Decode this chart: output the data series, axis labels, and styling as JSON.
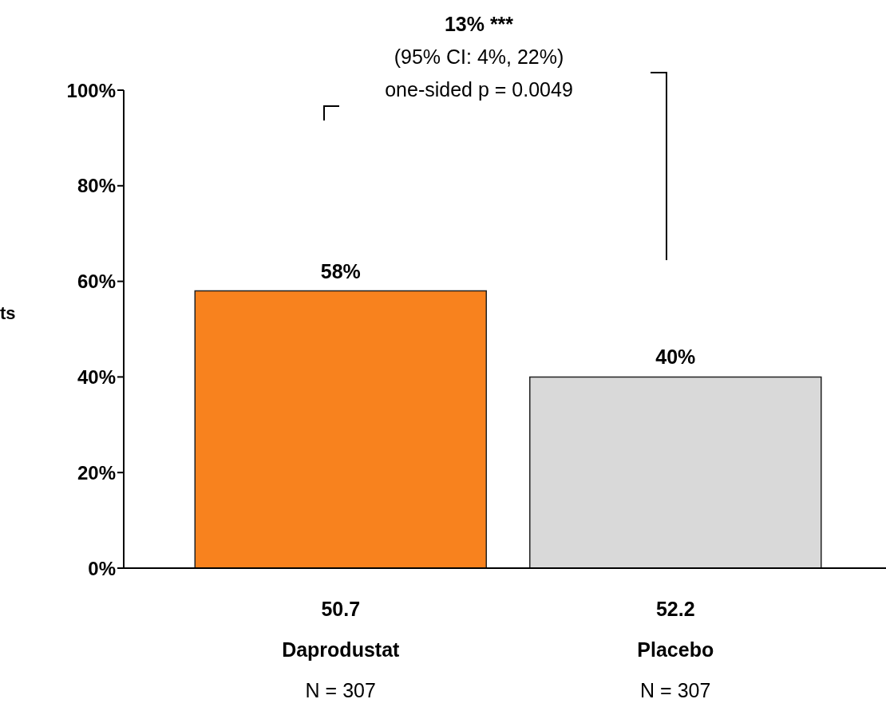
{
  "chart_data": {
    "type": "bar",
    "ylabel": "ts",
    "categories": [
      "50.7\nDaprodustat\nN = 307",
      "52.2\nPlacebo\nN = 307"
    ],
    "values": [
      58,
      40
    ],
    "colors": [
      "#f8821e",
      "#d9d9d9"
    ],
    "ylim": [
      0,
      100
    ],
    "yticks": [
      {
        "value": 0,
        "label": "0%"
      },
      {
        "value": 20,
        "label": "20%"
      },
      {
        "value": 40,
        "label": "40%"
      },
      {
        "value": 60,
        "label": "60%"
      },
      {
        "value": 80,
        "label": "80%"
      },
      {
        "value": 100,
        "label": "100%"
      }
    ],
    "value_labels": [
      "58%",
      "40%"
    ],
    "annotations": [
      "13% ***",
      "(95% CI: 4%, 22%)",
      "one-sided p = 0.0049"
    ]
  }
}
